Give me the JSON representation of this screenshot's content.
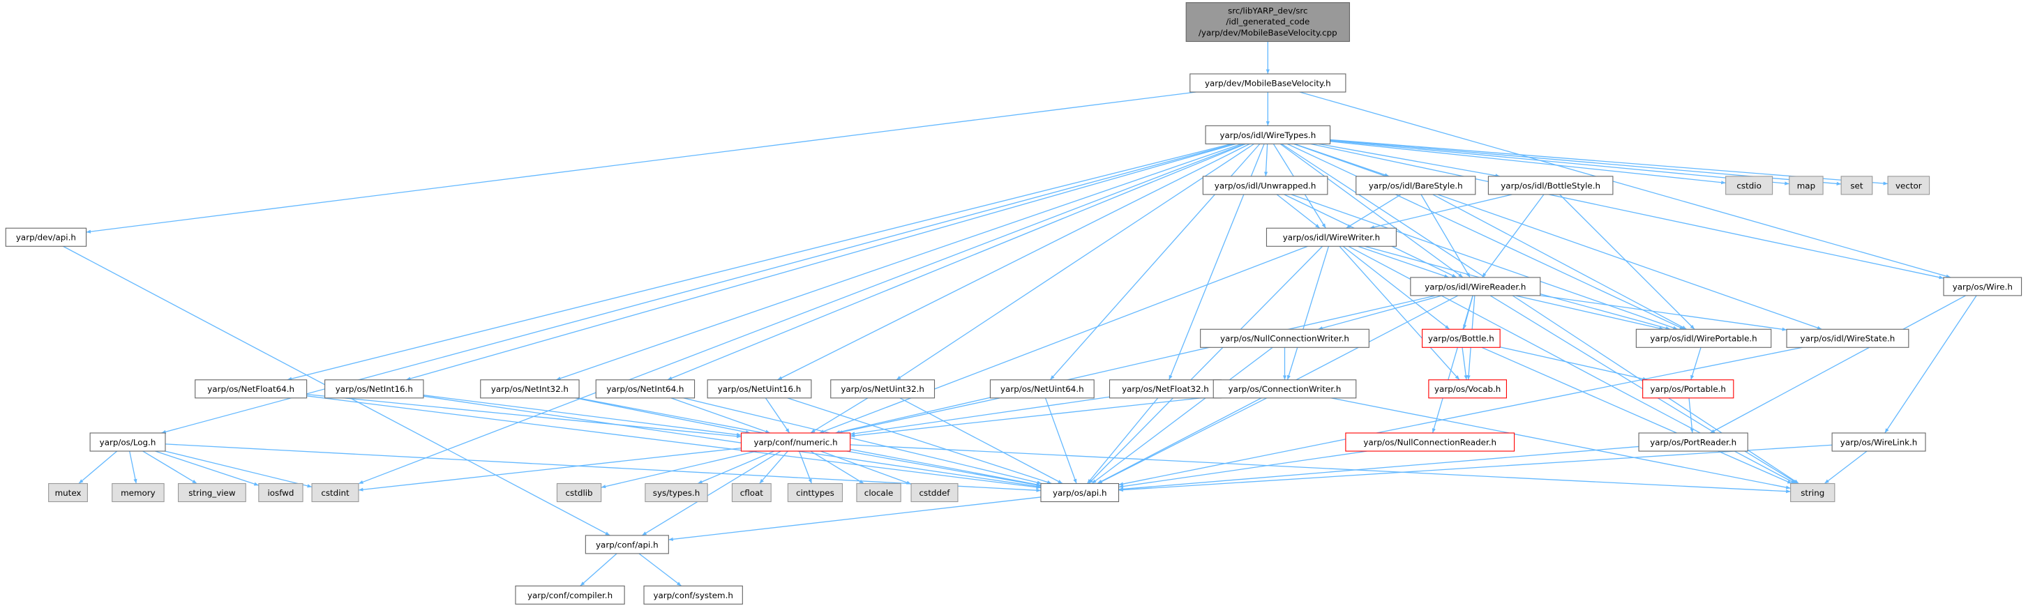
{
  "nodes": [
    {
      "lines": [
        "src/libYARP_dev/src",
        "/idl_generated_code",
        "/yarp/dev/MobileBaseVelocity.cpp"
      ]
    },
    {
      "label": "yarp/dev/MobileBaseVelocity.h"
    },
    {
      "label": "yarp/os/idl/WireTypes.h"
    },
    {
      "label": "yarp/dev/api.h"
    },
    {
      "label": "yarp/os/Log.h"
    },
    {
      "label": "yarp/os/NetFloat64.h"
    },
    {
      "label": "yarp/os/NetInt16.h"
    },
    {
      "label": "yarp/os/NetInt32.h"
    },
    {
      "label": "yarp/os/NetInt64.h"
    },
    {
      "label": "yarp/os/NetUint16.h"
    },
    {
      "label": "yarp/os/NetUint32.h"
    },
    {
      "label": "yarp/os/NetUint64.h"
    },
    {
      "label": "yarp/os/NetFloat32.h"
    },
    {
      "label": "yarp/os/idl/Unwrapped.h"
    },
    {
      "label": "yarp/os/idl/BareStyle.h"
    },
    {
      "label": "yarp/os/idl/BottleStyle.h"
    },
    {
      "label": "cstdio"
    },
    {
      "label": "map"
    },
    {
      "label": "set"
    },
    {
      "label": "vector"
    },
    {
      "label": "yarp/os/idl/WireWriter.h"
    },
    {
      "label": "yarp/os/idl/WireReader.h"
    },
    {
      "label": "yarp/os/Wire.h"
    },
    {
      "label": "yarp/os/NullConnectionWriter.h"
    },
    {
      "label": "yarp/os/Bottle.h"
    },
    {
      "label": "yarp/os/idl/WirePortable.h"
    },
    {
      "label": "yarp/os/idl/WireState.h"
    },
    {
      "label": "yarp/os/ConnectionWriter.h"
    },
    {
      "label": "yarp/os/Vocab.h"
    },
    {
      "label": "yarp/os/Portable.h"
    },
    {
      "label": "yarp/conf/numeric.h"
    },
    {
      "label": "yarp/os/NullConnectionReader.h"
    },
    {
      "label": "yarp/os/PortReader.h"
    },
    {
      "label": "yarp/os/WireLink.h"
    },
    {
      "label": "mutex"
    },
    {
      "label": "memory"
    },
    {
      "label": "string_view"
    },
    {
      "label": "iosfwd"
    },
    {
      "label": "cstdint"
    },
    {
      "label": "cstdlib"
    },
    {
      "label": "sys/types.h"
    },
    {
      "label": "cfloat"
    },
    {
      "label": "cinttypes"
    },
    {
      "label": "clocale"
    },
    {
      "label": "cstddef"
    },
    {
      "label": "yarp/os/api.h"
    },
    {
      "label": "string"
    },
    {
      "label": "yarp/conf/api.h"
    },
    {
      "label": "yarp/conf/compiler.h"
    },
    {
      "label": "yarp/conf/system.h"
    }
  ]
}
